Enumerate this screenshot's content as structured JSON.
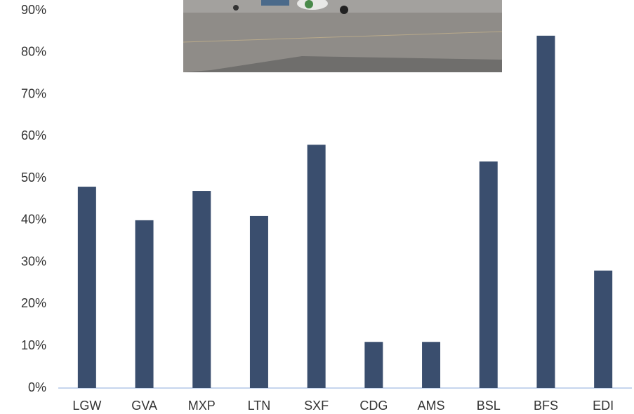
{
  "chart_data": {
    "type": "bar",
    "categories": [
      "LGW",
      "GVA",
      "MXP",
      "LTN",
      "SXF",
      "CDG",
      "AMS",
      "BSL",
      "BFS",
      "EDI"
    ],
    "values": [
      48,
      40,
      47,
      41,
      58,
      11,
      11,
      54,
      84,
      28
    ],
    "color": "#3a4e6e",
    "ylim": [
      0,
      90
    ],
    "yticks": [
      {
        "value": 0,
        "label": "0%"
      },
      {
        "value": 10,
        "label": "10%"
      },
      {
        "value": 20,
        "label": "20%"
      },
      {
        "value": 30,
        "label": "30%"
      },
      {
        "value": 40,
        "label": "40%"
      },
      {
        "value": 50,
        "label": "50%"
      },
      {
        "value": 60,
        "label": "60%"
      },
      {
        "value": 70,
        "label": "70%"
      },
      {
        "value": 80,
        "label": "80%"
      },
      {
        "value": 90,
        "label": "90%"
      }
    ],
    "grid": false
  }
}
